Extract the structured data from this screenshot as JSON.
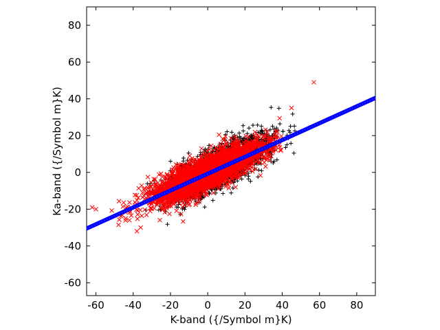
{
  "chart_data": {
    "type": "scatter",
    "xlabel": "K-band ({/Symbol m}K)",
    "ylabel": "Ka-band ({/Symbol m}K)",
    "xlim": [
      -65,
      90
    ],
    "ylim": [
      -67,
      90
    ],
    "xticks": [
      -60,
      -40,
      -20,
      0,
      20,
      40,
      60,
      80
    ],
    "yticks": [
      -60,
      -40,
      -20,
      0,
      20,
      40,
      60,
      80
    ],
    "xtick_labels": [
      "-60",
      "-40",
      "-20",
      "0",
      "20",
      "40",
      "60",
      "80"
    ],
    "ytick_labels": [
      "-60",
      "-40",
      "-20",
      "0",
      "20",
      "40",
      "60",
      "80"
    ],
    "grid": false,
    "series": [
      {
        "marker": "+",
        "color": "#000000",
        "count": 2200,
        "x_mean": 5,
        "x_std": 14,
        "slope": 0.48,
        "resid_std": 5.5,
        "x_range": [
          -35,
          48
        ],
        "seed": 11
      },
      {
        "marker": "x",
        "color": "#ff0000",
        "count": 3200,
        "x_mean": 0,
        "x_std": 15,
        "slope": 0.45,
        "resid_std": 4.5,
        "x_range": [
          -65,
          40
        ],
        "seed": 7,
        "outliers": [
          {
            "x": -62,
            "y": -19
          },
          {
            "x": -60,
            "y": -20
          },
          {
            "x": 57,
            "y": 49
          },
          {
            "x": 45,
            "y": 35
          },
          {
            "x": -44,
            "y": -25
          },
          {
            "x": -42,
            "y": -26
          },
          {
            "x": -38,
            "y": -32
          },
          {
            "x": -36,
            "y": -30
          }
        ]
      }
    ],
    "fit_line": {
      "color": "#0000ff",
      "x": [
        -65,
        90
      ],
      "y": [
        -30.5,
        40.5
      ]
    }
  }
}
